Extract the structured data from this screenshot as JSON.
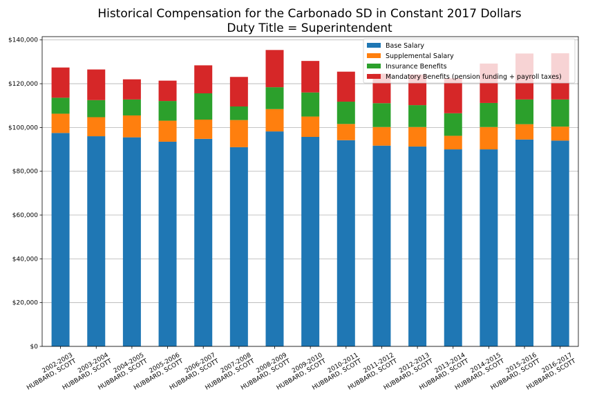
{
  "chart_data": {
    "type": "bar",
    "stacked": true,
    "title_line1": "Historical Compensation for the Carbonado SD in Constant 2017 Dollars",
    "title_line2": "Duty Title = Superintendent",
    "categories": [
      [
        "2002-2003",
        "HUBBARD, SCOTT"
      ],
      [
        "2003-2004",
        "HUBBARD, SCOTT"
      ],
      [
        "2004-2005",
        "HUBBARD, SCOTT"
      ],
      [
        "2005-2006",
        "HUBBARD, SCOTT"
      ],
      [
        "2006-2007",
        "HUBBARD, SCOTT"
      ],
      [
        "2007-2008",
        "HUBBARD, SCOTT"
      ],
      [
        "2008-2009",
        "HUBBARD, SCOTT"
      ],
      [
        "2009-2010",
        "HUBBARD, SCOTT"
      ],
      [
        "2010-2011",
        "HUBBARD, SCOTT"
      ],
      [
        "2011-2012",
        "HUBBARD, SCOTT"
      ],
      [
        "2012-2013",
        "HUBBARD, SCOTT"
      ],
      [
        "2013-2014",
        "HUBBARD, SCOTT"
      ],
      [
        "2014-2015",
        "HUBBARD, SCOTT"
      ],
      [
        "2015-2016",
        "HUBBARD, SCOTT"
      ],
      [
        "2016-2017",
        "HUBBARD, SCOTT"
      ]
    ],
    "series": [
      {
        "name": "Base Salary",
        "color": "#1f77b4",
        "values": [
          97500,
          96000,
          95500,
          93500,
          94800,
          91000,
          98200,
          95700,
          94200,
          91700,
          91300,
          90000,
          90000,
          94500,
          94000
        ]
      },
      {
        "name": "Supplemental Salary",
        "color": "#ff7f0e",
        "values": [
          8800,
          8700,
          10000,
          9600,
          8800,
          12400,
          10200,
          9300,
          7400,
          8500,
          8900,
          6200,
          10200,
          7000,
          6400
        ]
      },
      {
        "name": "Insurance Benefits",
        "color": "#2ca02c",
        "values": [
          7300,
          7800,
          7300,
          9000,
          12000,
          6200,
          10000,
          11000,
          10200,
          10900,
          10000,
          10300,
          11000,
          11300,
          12400
        ]
      },
      {
        "name": "Mandatory Benefits (pension funding + payroll taxes)",
        "color": "#d62728",
        "values": [
          13800,
          14000,
          9200,
          9300,
          12800,
          13500,
          17000,
          14400,
          13700,
          13500,
          14000,
          16000,
          18000,
          21000,
          21100
        ]
      }
    ],
    "ylim": [
      0,
      141500
    ],
    "yticks": [
      0,
      20000,
      40000,
      60000,
      80000,
      100000,
      120000,
      140000
    ],
    "ytick_labels": [
      "$0",
      "$20,000",
      "$40,000",
      "$60,000",
      "$80,000",
      "$100,000",
      "$120,000",
      "$140,000"
    ],
    "grid": "horizontal",
    "legend_position": "top-right",
    "xlabel": "",
    "ylabel": ""
  }
}
